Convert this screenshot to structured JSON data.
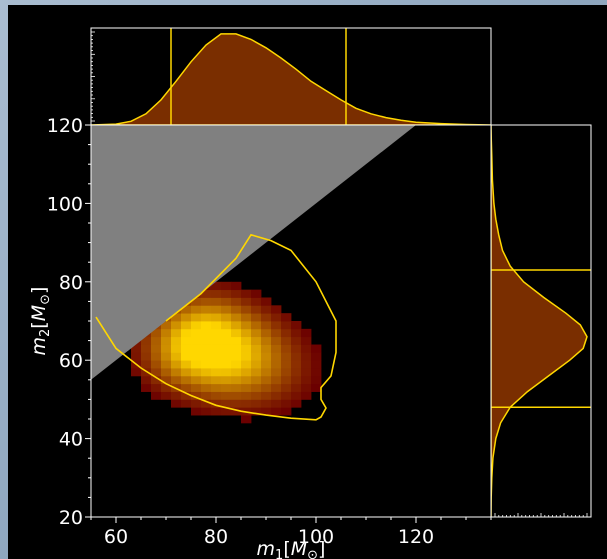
{
  "chart_data": [
    {
      "type": "heatmap",
      "panel": "joint",
      "xlabel": "m_1[M_⊙]",
      "ylabel": "m_2[M_⊙]",
      "xlim": [
        55,
        135
      ],
      "ylim": [
        20,
        120
      ],
      "xticks": [
        60,
        80,
        100,
        120
      ],
      "yticks": [
        20,
        40,
        60,
        80,
        100,
        120
      ],
      "excluded_region": "m2 > m1",
      "density_peak": {
        "x": 78,
        "y": 64
      },
      "contour": [
        {
          "x": 56,
          "y": 71
        },
        {
          "x": 60,
          "y": 63
        },
        {
          "x": 65,
          "y": 58
        },
        {
          "x": 70,
          "y": 54
        },
        {
          "x": 75,
          "y": 51
        },
        {
          "x": 80,
          "y": 48.5
        },
        {
          "x": 85,
          "y": 47
        },
        {
          "x": 90,
          "y": 46
        },
        {
          "x": 95,
          "y": 45.2
        },
        {
          "x": 100,
          "y": 44.8
        },
        {
          "x": 101,
          "y": 45.5
        },
        {
          "x": 102,
          "y": 47.8
        },
        {
          "x": 101,
          "y": 50
        },
        {
          "x": 101,
          "y": 53
        },
        {
          "x": 103,
          "y": 56
        },
        {
          "x": 104,
          "y": 62
        },
        {
          "x": 104,
          "y": 70
        },
        {
          "x": 100,
          "y": 80
        },
        {
          "x": 95,
          "y": 88
        },
        {
          "x": 91,
          "y": 90.5
        },
        {
          "x": 87,
          "y": 92
        },
        {
          "x": 84,
          "y": 86
        },
        {
          "x": 77,
          "y": 77
        },
        {
          "x": 70,
          "y": 70
        }
      ],
      "colors": {
        "background": "#000000",
        "excluded": "#808080",
        "contour": "#ffd700",
        "density_low": "#6b0000",
        "density_high": "#ffd700"
      }
    },
    {
      "type": "area",
      "panel": "marginal-m1",
      "xlim": [
        55,
        135
      ],
      "interval": [
        71,
        106
      ],
      "x": [
        55,
        60,
        63,
        66,
        69,
        72,
        75,
        78,
        81,
        84,
        87,
        90,
        93,
        96,
        99,
        102,
        105,
        108,
        111,
        114,
        117,
        120,
        125,
        130,
        135
      ],
      "density": [
        0.0,
        0.01,
        0.04,
        0.12,
        0.27,
        0.47,
        0.68,
        0.86,
        0.98,
        0.98,
        0.92,
        0.83,
        0.72,
        0.6,
        0.47,
        0.37,
        0.27,
        0.18,
        0.12,
        0.08,
        0.05,
        0.03,
        0.015,
        0.005,
        0.0
      ],
      "colors": {
        "fill": "#7a2e00",
        "line": "#ffd700",
        "interval": "#ffd700"
      }
    },
    {
      "type": "area",
      "panel": "marginal-m2",
      "ylim": [
        20,
        120
      ],
      "interval": [
        48,
        83
      ],
      "y": [
        20,
        25,
        30,
        35,
        40,
        44,
        48,
        52,
        56,
        60,
        63,
        66,
        69,
        72,
        76,
        80,
        84,
        88,
        92,
        96,
        100,
        106,
        112,
        116,
        120
      ],
      "density": [
        0.0,
        0.002,
        0.008,
        0.02,
        0.05,
        0.1,
        0.2,
        0.38,
        0.6,
        0.82,
        0.96,
        1.0,
        0.93,
        0.78,
        0.55,
        0.34,
        0.2,
        0.12,
        0.08,
        0.05,
        0.03,
        0.015,
        0.008,
        0.003,
        0.0
      ],
      "colors": {
        "fill": "#7a2e00",
        "line": "#ffd700",
        "interval": "#ffd700"
      }
    }
  ]
}
